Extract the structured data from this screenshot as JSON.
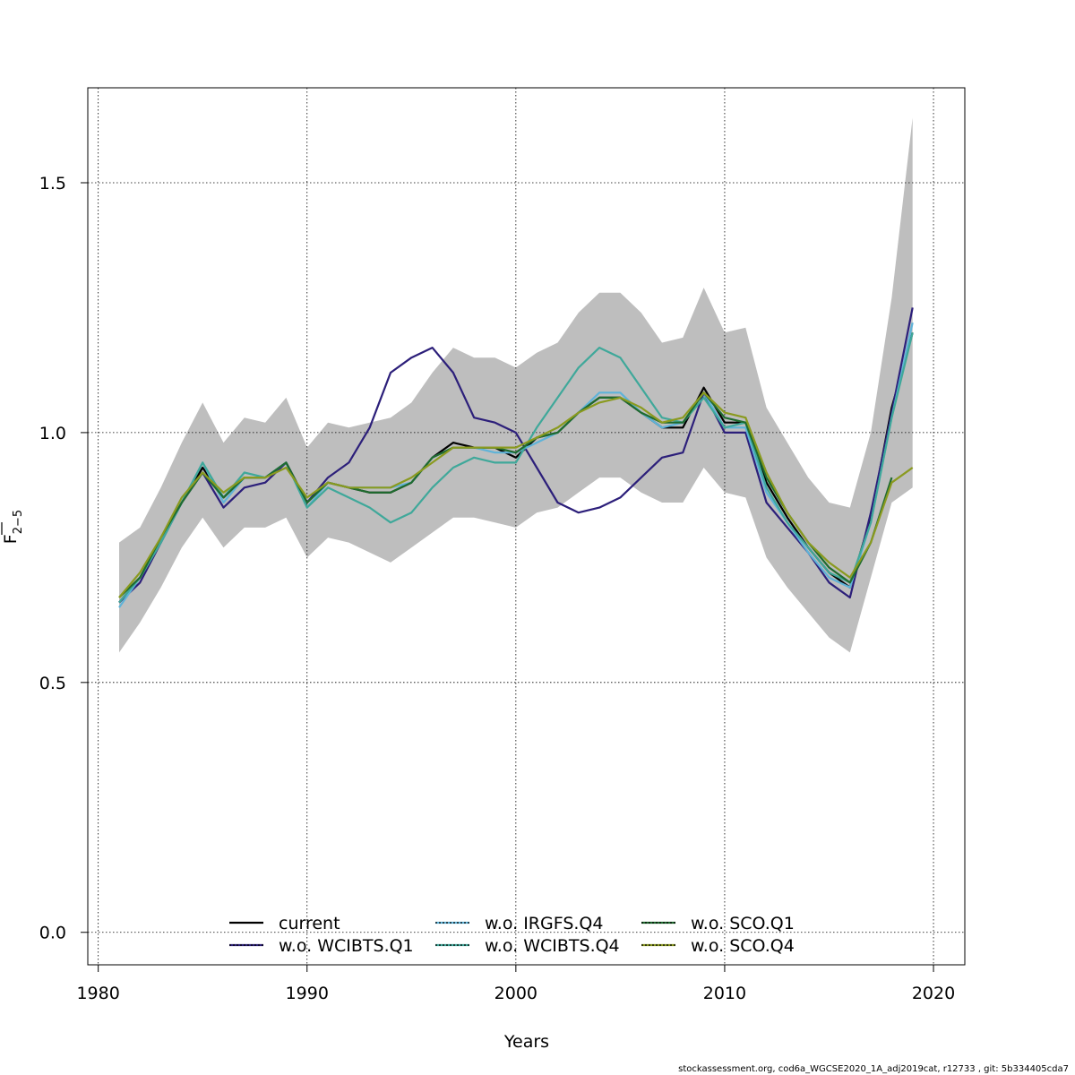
{
  "chart_data": {
    "type": "line",
    "title": "",
    "xlabel": "Years",
    "ylabel_main": "F",
    "ylabel_sub": "2−5",
    "xlim": [
      1979.5,
      2021.5
    ],
    "ylim": [
      -0.065,
      1.69
    ],
    "xticks": [
      1980,
      1990,
      2000,
      2010,
      2020
    ],
    "yticks": [
      0.0,
      0.5,
      1.0,
      1.5
    ],
    "xtick_labels": [
      "1980",
      "1990",
      "2000",
      "2010",
      "2020"
    ],
    "ytick_labels": [
      "0.0",
      "0.5",
      "1.0",
      "1.5"
    ],
    "grid": true,
    "legend_position": "bottom",
    "footer": "stockassessment.org, cod6a_WGCSE2020_1A_adj2019cat, r12733 , git: 5b334405cda7",
    "x": [
      1981,
      1982,
      1983,
      1984,
      1985,
      1986,
      1987,
      1988,
      1989,
      1990,
      1991,
      1992,
      1993,
      1994,
      1995,
      1996,
      1997,
      1998,
      1999,
      2000,
      2001,
      2002,
      2003,
      2004,
      2005,
      2006,
      2007,
      2008,
      2009,
      2010,
      2011,
      2012,
      2013,
      2014,
      2015,
      2016,
      2017,
      2018,
      2019
    ],
    "band": {
      "color": "#bebebe",
      "lower": [
        0.56,
        0.62,
        0.69,
        0.77,
        0.83,
        0.77,
        0.81,
        0.81,
        0.83,
        0.75,
        0.79,
        0.78,
        0.76,
        0.74,
        0.77,
        0.8,
        0.83,
        0.83,
        0.82,
        0.81,
        0.84,
        0.85,
        0.88,
        0.91,
        0.91,
        0.88,
        0.86,
        0.86,
        0.93,
        0.88,
        0.87,
        0.75,
        0.69,
        0.64,
        0.59,
        0.56,
        0.71,
        0.86,
        0.89
      ],
      "upper": [
        0.78,
        0.81,
        0.89,
        0.98,
        1.06,
        0.98,
        1.03,
        1.02,
        1.07,
        0.97,
        1.02,
        1.01,
        1.02,
        1.03,
        1.06,
        1.12,
        1.17,
        1.15,
        1.15,
        1.13,
        1.16,
        1.18,
        1.24,
        1.28,
        1.28,
        1.24,
        1.18,
        1.19,
        1.29,
        1.2,
        1.21,
        1.05,
        0.98,
        0.91,
        0.86,
        0.85,
        1.0,
        1.27,
        1.63
      ]
    },
    "series": [
      {
        "name": "current",
        "color": "#000000",
        "dash": "",
        "values": [
          0.66,
          0.71,
          0.78,
          0.86,
          0.93,
          0.87,
          0.91,
          0.91,
          0.94,
          0.86,
          0.9,
          0.89,
          0.88,
          0.88,
          0.9,
          0.95,
          0.98,
          0.97,
          0.97,
          0.95,
          0.99,
          1.0,
          1.04,
          1.07,
          1.07,
          1.04,
          1.01,
          1.01,
          1.09,
          1.02,
          1.02,
          0.9,
          0.83,
          0.77,
          0.72,
          0.69,
          0.83,
          1.05,
          1.2
        ]
      },
      {
        "name": "w.o. WCIBTS.Q1",
        "color": "#2c1f7a",
        "dash": "",
        "values": [
          0.66,
          0.7,
          0.78,
          0.86,
          0.92,
          0.85,
          0.89,
          0.9,
          0.94,
          0.86,
          0.91,
          0.94,
          1.01,
          1.12,
          1.15,
          1.17,
          1.12,
          1.03,
          1.02,
          1.0,
          0.93,
          0.86,
          0.84,
          0.85,
          0.87,
          0.91,
          0.95,
          0.96,
          1.08,
          1.0,
          1.0,
          0.86,
          0.81,
          0.76,
          0.7,
          0.67,
          0.84,
          1.04,
          1.25
        ]
      },
      {
        "name": "w.o. IRGFS.Q4",
        "color": "#5fb3d8",
        "dash": "",
        "values": [
          0.65,
          0.71,
          0.78,
          0.86,
          0.94,
          0.86,
          0.91,
          0.91,
          0.94,
          0.85,
          0.9,
          0.89,
          0.89,
          0.89,
          0.9,
          0.95,
          0.97,
          0.97,
          0.96,
          0.96,
          0.98,
          1.0,
          1.04,
          1.08,
          1.08,
          1.04,
          1.01,
          1.02,
          1.08,
          1.01,
          1.01,
          0.88,
          0.82,
          0.76,
          0.71,
          0.69,
          0.82,
          1.03,
          1.22
        ]
      },
      {
        "name": "w.o. WCIBTS.Q4",
        "color": "#3fa89a",
        "dash": "",
        "values": [
          0.66,
          0.71,
          0.78,
          0.86,
          0.94,
          0.87,
          0.92,
          0.91,
          0.94,
          0.85,
          0.89,
          0.87,
          0.85,
          0.82,
          0.84,
          0.89,
          0.93,
          0.95,
          0.94,
          0.94,
          1.01,
          1.07,
          1.13,
          1.17,
          1.15,
          1.09,
          1.03,
          1.02,
          1.07,
          1.01,
          1.02,
          0.89,
          0.82,
          0.77,
          0.72,
          0.7,
          0.82,
          1.03,
          1.2
        ]
      },
      {
        "name": "w.o. SCO.Q1",
        "color": "#1f6b2f",
        "dash": "",
        "values": [
          0.67,
          0.71,
          0.79,
          0.86,
          0.92,
          0.87,
          0.91,
          0.91,
          0.94,
          0.86,
          0.9,
          0.89,
          0.88,
          0.88,
          0.9,
          0.95,
          0.97,
          0.97,
          0.97,
          0.96,
          0.99,
          1.0,
          1.04,
          1.07,
          1.07,
          1.04,
          1.02,
          1.02,
          1.08,
          1.03,
          1.02,
          0.91,
          0.84,
          0.78,
          0.73,
          0.7,
          0.78,
          0.91,
          null
        ]
      },
      {
        "name": "w.o. SCO.Q4",
        "color": "#8a9a1f",
        "dash": "",
        "values": [
          0.67,
          0.72,
          0.79,
          0.87,
          0.92,
          0.88,
          0.91,
          0.91,
          0.93,
          0.87,
          0.9,
          0.89,
          0.89,
          0.89,
          0.91,
          0.94,
          0.97,
          0.97,
          0.97,
          0.97,
          0.99,
          1.01,
          1.04,
          1.06,
          1.07,
          1.05,
          1.02,
          1.03,
          1.08,
          1.04,
          1.03,
          0.92,
          0.84,
          0.78,
          0.74,
          0.71,
          0.78,
          0.9,
          0.93
        ]
      }
    ]
  }
}
